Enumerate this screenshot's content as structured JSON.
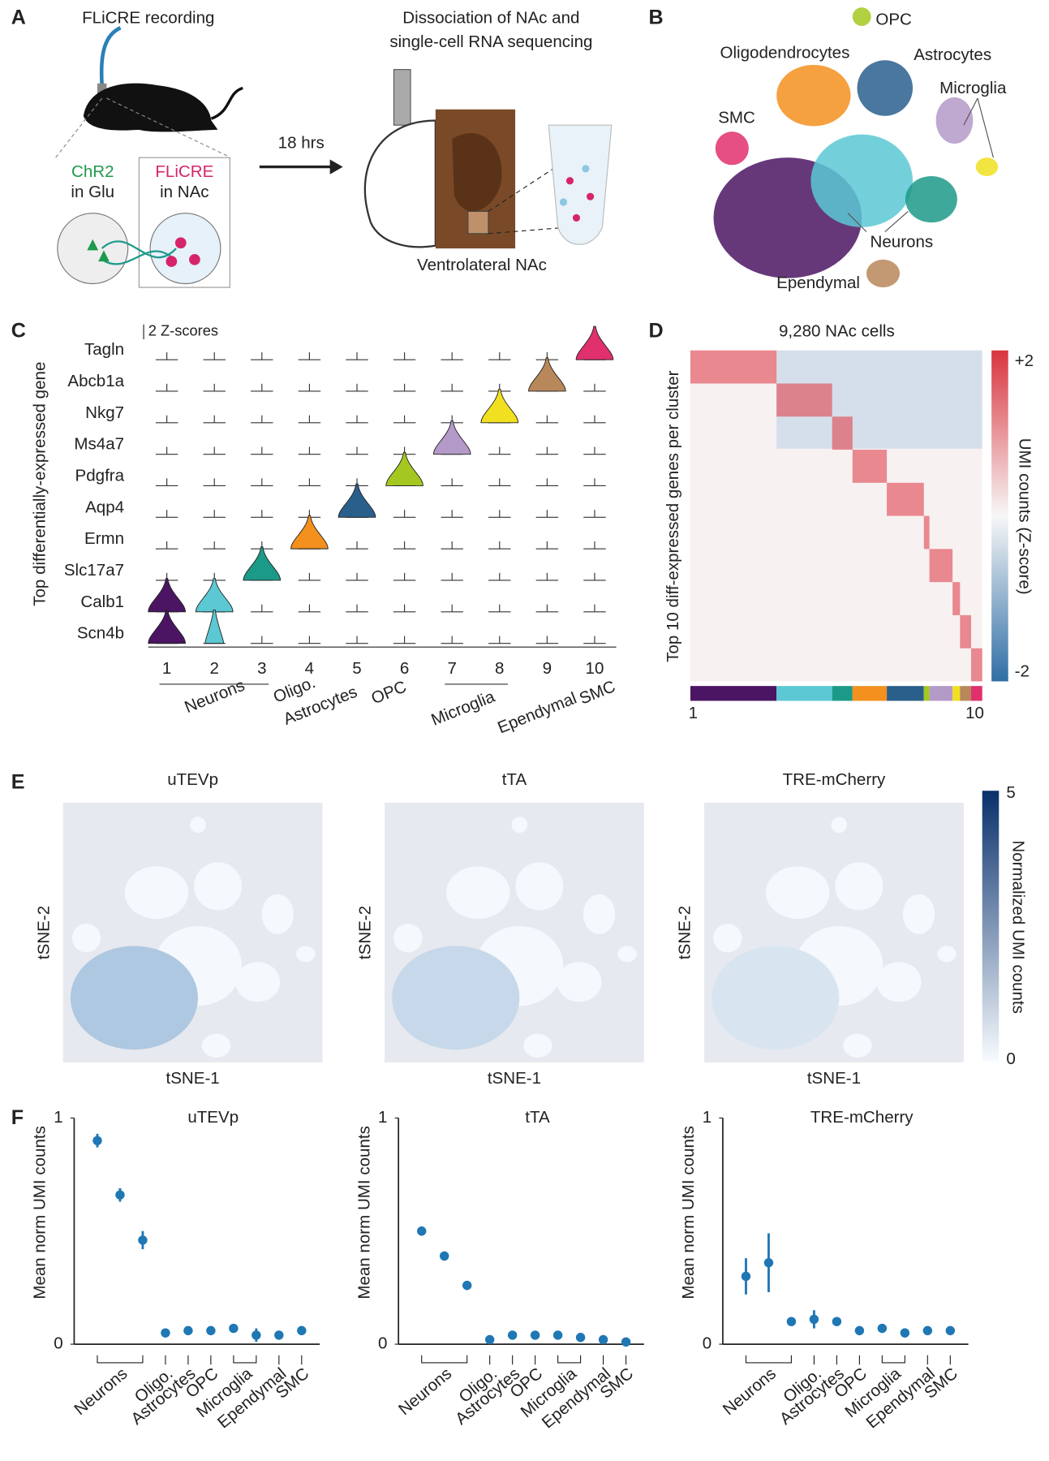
{
  "panels": {
    "a": {
      "letter": "A",
      "title": "FLiCRE recording",
      "chr2": "ChR2",
      "in_glu": "in Glu",
      "flicre": "FLiCRE",
      "in_nac": "in NAc",
      "time": "18 hrs",
      "dissociation": "Dissociation of NAc and",
      "sequencing": "single-cell RNA sequencing",
      "region": "Ventrolateral NAc"
    },
    "b": {
      "letter": "B",
      "labels": [
        "OPC",
        "Oligodendrocytes",
        "Astrocytes",
        "Microglia",
        "SMC",
        "Neurons",
        "Ependymal"
      ]
    },
    "c": {
      "letter": "C",
      "scale": "2 Z-scores",
      "ylabel": "Top differentially-expressed gene",
      "genes": [
        "Tagln",
        "Abcb1a",
        "Nkg7",
        "Ms4a7",
        "Pdgfra",
        "Aqp4",
        "Ermn",
        "Slc17a7",
        "Calb1",
        "Scn4b"
      ],
      "clusters": [
        "1",
        "2",
        "3",
        "4",
        "5",
        "6",
        "7",
        "8",
        "9",
        "10"
      ],
      "groups": [
        "Neurons",
        "Oligo.",
        "Astrocytes",
        "OPC",
        "Microglia",
        "Ependymal",
        "SMC"
      ],
      "colors": [
        "#4b1563",
        "#5bc8d3",
        "#1c9a88",
        "#f3901e",
        "#2a5f8c",
        "#a4c81f",
        "#b49ac8",
        "#f0e020",
        "#b8875a",
        "#e0306e"
      ]
    },
    "d": {
      "letter": "D",
      "title": "9,280 NAc cells",
      "ylabel": "Top 10 diff-expressed genes per cluster",
      "colorbar_label": "UMI counts (Z-score)",
      "max_label": "+2",
      "min_label": "-2",
      "first": "1",
      "last": "10"
    },
    "e": {
      "letter": "E",
      "titles": [
        "uTEVp",
        "tTA",
        "TRE-mCherry"
      ],
      "xlabel": "tSNE-1",
      "ylabel": "tSNE-2",
      "colorbar_label": "Normalized UMI counts",
      "max_label": "5",
      "min_label": "0"
    },
    "f": {
      "letter": "F"
    }
  },
  "chart_data": [
    {
      "type": "dot",
      "title": "uTEVp",
      "ylabel": "Mean norm UMI counts",
      "color": "#1f77b4",
      "categories": [
        null,
        "Neurons",
        null,
        "Oligo.",
        "Astrocytes",
        "OPC",
        "Microglia",
        null,
        "Ependymal",
        "SMC"
      ],
      "values": [
        0.9,
        0.66,
        0.46,
        0.05,
        0.06,
        0.06,
        0.07,
        0.04,
        0.04,
        0.06
      ],
      "errors": [
        0.03,
        0.03,
        0.04,
        0.01,
        0.01,
        0.01,
        0.01,
        0.03,
        0.01,
        0.02
      ],
      "ylim": [
        0,
        1
      ],
      "yticks": [
        0,
        1
      ]
    },
    {
      "type": "dot",
      "title": "tTA",
      "ylabel": "Mean norm UMI counts",
      "color": "#1f77b4",
      "categories": [
        null,
        "Neurons",
        null,
        "Oligo.",
        "Astrocytes",
        "OPC",
        "Microglia",
        null,
        "Ependymal",
        "SMC"
      ],
      "values": [
        0.5,
        0.39,
        0.26,
        0.02,
        0.04,
        0.04,
        0.04,
        0.03,
        0.02,
        0.01
      ],
      "errors": [
        0.02,
        0.02,
        0.02,
        0.01,
        0.01,
        0.01,
        0.01,
        0.01,
        0.01,
        0.01
      ],
      "ylim": [
        0,
        1
      ],
      "yticks": [
        0,
        1
      ]
    },
    {
      "type": "dot",
      "title": "TRE-mCherry",
      "ylabel": "Mean norm UMI counts",
      "color": "#1f77b4",
      "categories": [
        null,
        "Neurons",
        null,
        "Oligo.",
        "Astrocytes",
        "OPC",
        "Microglia",
        null,
        "Ependymal",
        "SMC"
      ],
      "values": [
        0.3,
        0.36,
        0.1,
        0.11,
        0.1,
        0.06,
        0.07,
        0.05,
        0.06,
        0.06
      ],
      "errors": [
        0.08,
        0.13,
        0.01,
        0.04,
        0.01,
        0.01,
        0.01,
        0.02,
        0.01,
        0.01
      ],
      "ylim": [
        0,
        1
      ],
      "yticks": [
        0,
        1
      ]
    }
  ]
}
